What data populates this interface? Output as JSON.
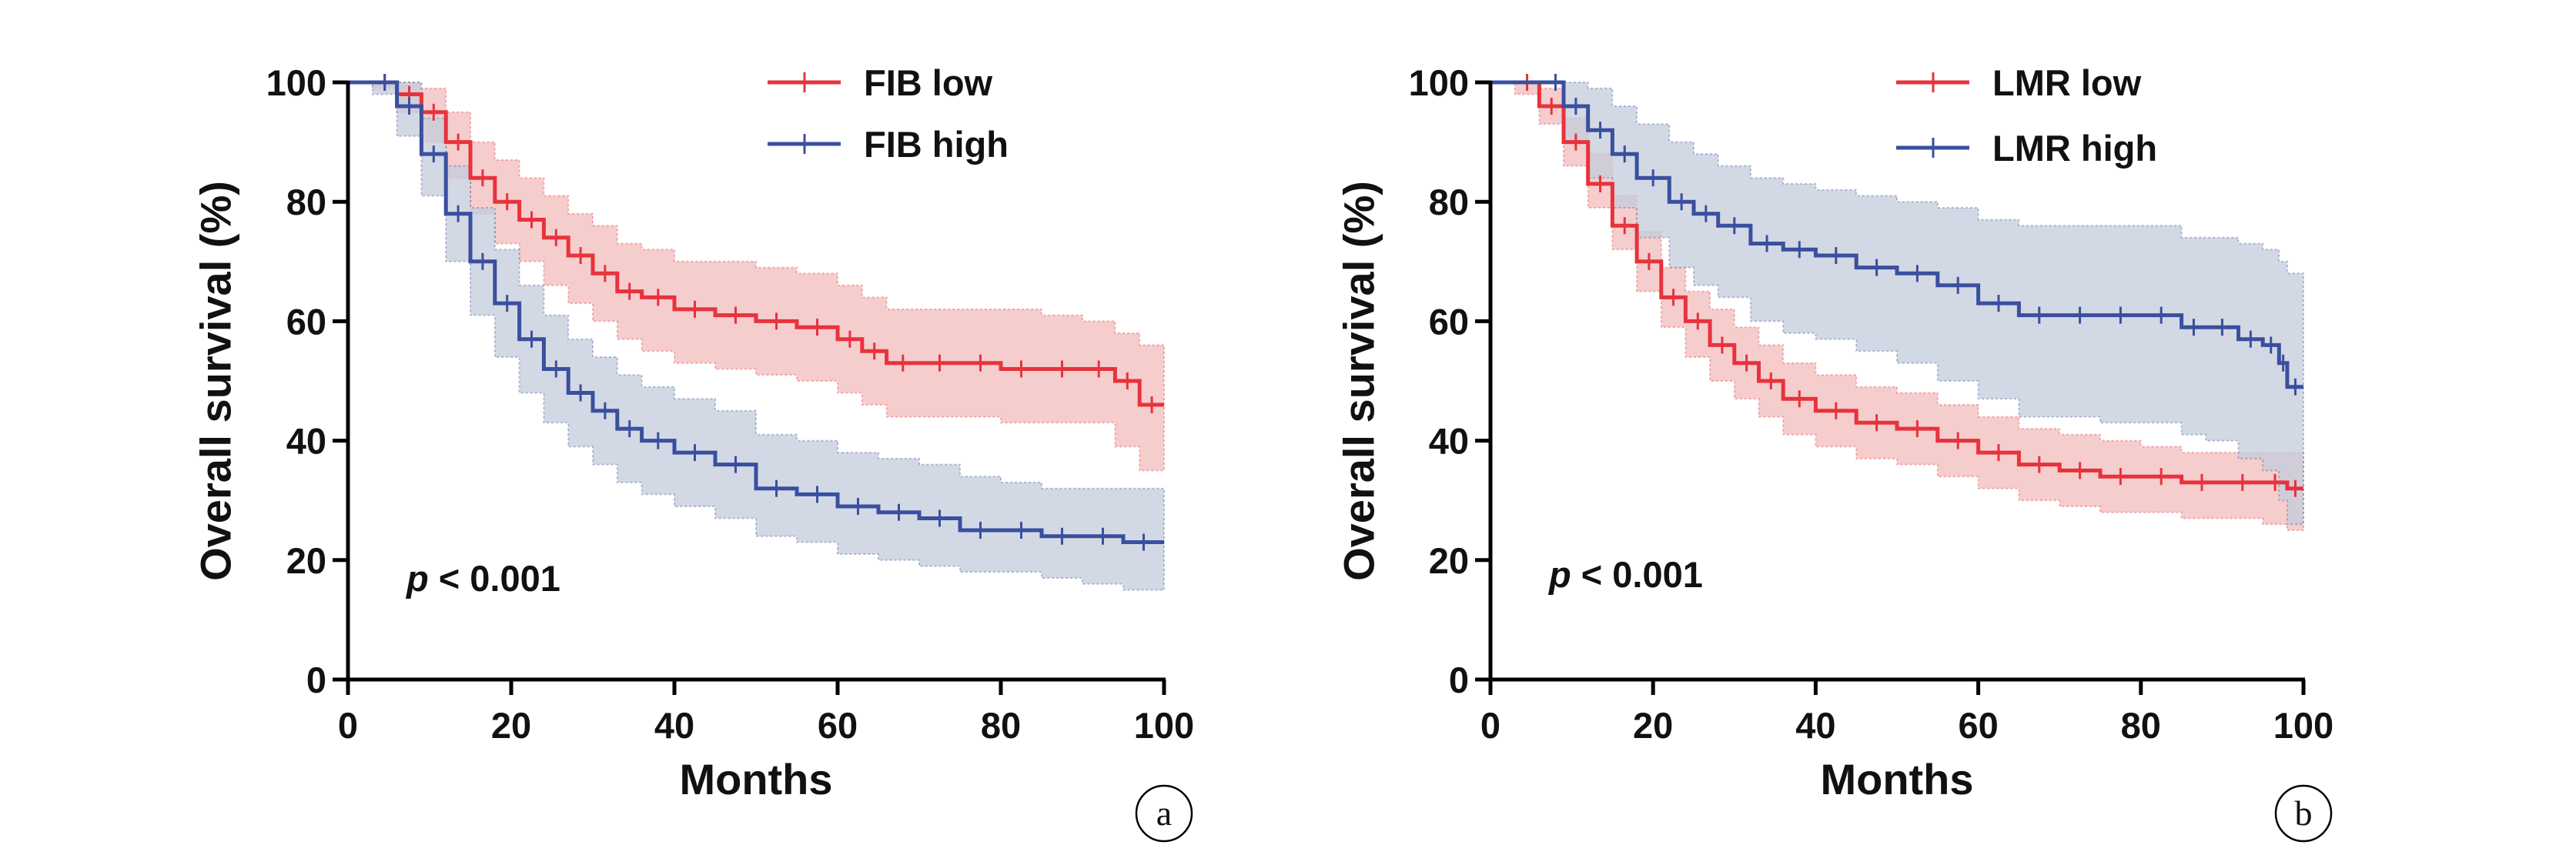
{
  "chart_data": [
    {
      "type": "line",
      "subtype": "kaplan-meier",
      "panel_label": "a",
      "xlabel": "Months",
      "ylabel": "Overall survival (%)",
      "xlim": [
        0,
        100
      ],
      "ylim": [
        0,
        100
      ],
      "xticks": [
        "0",
        "20",
        "40",
        "60",
        "80",
        "100"
      ],
      "yticks": [
        "0",
        "20",
        "40",
        "60",
        "80",
        "100"
      ],
      "annotation_italic": "p",
      "annotation_rest": " < 0.001",
      "legend_position": "top-right",
      "series": [
        {
          "name": "FIB low",
          "color": "#e8323c",
          "band_color": "#f2bcbc",
          "x": [
            0,
            3,
            6,
            9,
            12,
            15,
            18,
            21,
            24,
            27,
            30,
            33,
            36,
            40,
            45,
            50,
            55,
            60,
            63,
            66,
            70,
            75,
            80,
            85,
            90,
            94,
            97,
            100
          ],
          "y": [
            100,
            100,
            98,
            95,
            90,
            84,
            80,
            77,
            74,
            71,
            68,
            65,
            64,
            62,
            61,
            60,
            59,
            57,
            55,
            53,
            53,
            53,
            52,
            52,
            52,
            50,
            46,
            46
          ],
          "lower": [
            100,
            99,
            95,
            90,
            84,
            78,
            73,
            70,
            66,
            63,
            60,
            57,
            55,
            53,
            52,
            51,
            50,
            48,
            46,
            44,
            44,
            44,
            43,
            43,
            43,
            39,
            35,
            35
          ],
          "upper": [
            100,
            100,
            100,
            99,
            95,
            90,
            87,
            84,
            81,
            78,
            76,
            73,
            72,
            70,
            70,
            69,
            68,
            66,
            64,
            62,
            62,
            62,
            62,
            61,
            60,
            58,
            56,
            56
          ]
        },
        {
          "name": "FIB high",
          "color": "#3a4f9f",
          "band_color": "#c3ccdb",
          "x": [
            0,
            3,
            6,
            9,
            12,
            15,
            18,
            21,
            24,
            27,
            30,
            33,
            36,
            40,
            45,
            50,
            55,
            60,
            65,
            70,
            75,
            80,
            85,
            90,
            95,
            100
          ],
          "y": [
            100,
            100,
            96,
            88,
            78,
            70,
            63,
            57,
            52,
            48,
            45,
            42,
            40,
            38,
            36,
            32,
            31,
            29,
            28,
            27,
            25,
            25,
            24,
            24,
            23,
            23
          ],
          "lower": [
            100,
            98,
            91,
            81,
            70,
            61,
            54,
            48,
            43,
            39,
            36,
            33,
            31,
            29,
            27,
            24,
            23,
            21,
            20,
            19,
            18,
            18,
            17,
            16,
            15,
            15
          ],
          "upper": [
            100,
            100,
            100,
            94,
            86,
            79,
            72,
            66,
            61,
            57,
            54,
            51,
            49,
            47,
            45,
            41,
            40,
            38,
            37,
            36,
            34,
            33,
            32,
            32,
            32,
            32
          ]
        }
      ]
    },
    {
      "type": "line",
      "subtype": "kaplan-meier",
      "panel_label": "b",
      "xlabel": "Months",
      "ylabel": "Overall survival (%)",
      "xlim": [
        0,
        100
      ],
      "ylim": [
        0,
        100
      ],
      "xticks": [
        "0",
        "20",
        "40",
        "60",
        "80",
        "100"
      ],
      "yticks": [
        "0",
        "20",
        "40",
        "60",
        "80",
        "100"
      ],
      "annotation_italic": "p",
      "annotation_rest": " < 0.001",
      "legend_position": "top-right",
      "series": [
        {
          "name": "LMR low",
          "color": "#e8323c",
          "band_color": "#f2bcbc",
          "x": [
            0,
            3,
            6,
            9,
            12,
            15,
            18,
            21,
            24,
            27,
            30,
            33,
            36,
            40,
            45,
            50,
            55,
            60,
            65,
            70,
            75,
            80,
            85,
            90,
            95,
            98,
            100
          ],
          "y": [
            100,
            100,
            96,
            90,
            83,
            76,
            70,
            64,
            60,
            56,
            53,
            50,
            47,
            45,
            43,
            42,
            40,
            38,
            36,
            35,
            34,
            34,
            33,
            33,
            33,
            32,
            32
          ],
          "lower": [
            100,
            98,
            93,
            86,
            79,
            72,
            65,
            59,
            54,
            50,
            47,
            44,
            41,
            39,
            37,
            36,
            34,
            32,
            30,
            29,
            28,
            28,
            27,
            27,
            26,
            25,
            25
          ],
          "upper": [
            100,
            100,
            99,
            94,
            88,
            81,
            75,
            69,
            65,
            62,
            59,
            56,
            53,
            51,
            49,
            48,
            46,
            44,
            42,
            41,
            40,
            39,
            38,
            38,
            38,
            38,
            38
          ]
        },
        {
          "name": "LMR high",
          "color": "#3a4f9f",
          "band_color": "#c3ccdb",
          "x": [
            0,
            7,
            9,
            12,
            15,
            18,
            22,
            25,
            28,
            32,
            36,
            40,
            45,
            50,
            55,
            60,
            65,
            70,
            75,
            80,
            85,
            88,
            92,
            95,
            97,
            98,
            100
          ],
          "y": [
            100,
            100,
            96,
            92,
            88,
            84,
            80,
            78,
            76,
            73,
            72,
            71,
            69,
            68,
            66,
            63,
            61,
            61,
            61,
            61,
            59,
            59,
            57,
            56,
            53,
            49,
            49
          ],
          "lower": [
            100,
            100,
            90,
            84,
            79,
            74,
            69,
            66,
            64,
            60,
            58,
            57,
            55,
            53,
            50,
            47,
            44,
            44,
            43,
            43,
            41,
            40,
            37,
            35,
            30,
            26,
            26
          ],
          "upper": [
            100,
            100,
            100,
            99,
            96,
            93,
            90,
            88,
            86,
            84,
            83,
            82,
            81,
            80,
            79,
            77,
            76,
            76,
            76,
            76,
            74,
            74,
            73,
            72,
            70,
            68,
            68
          ]
        }
      ]
    }
  ]
}
